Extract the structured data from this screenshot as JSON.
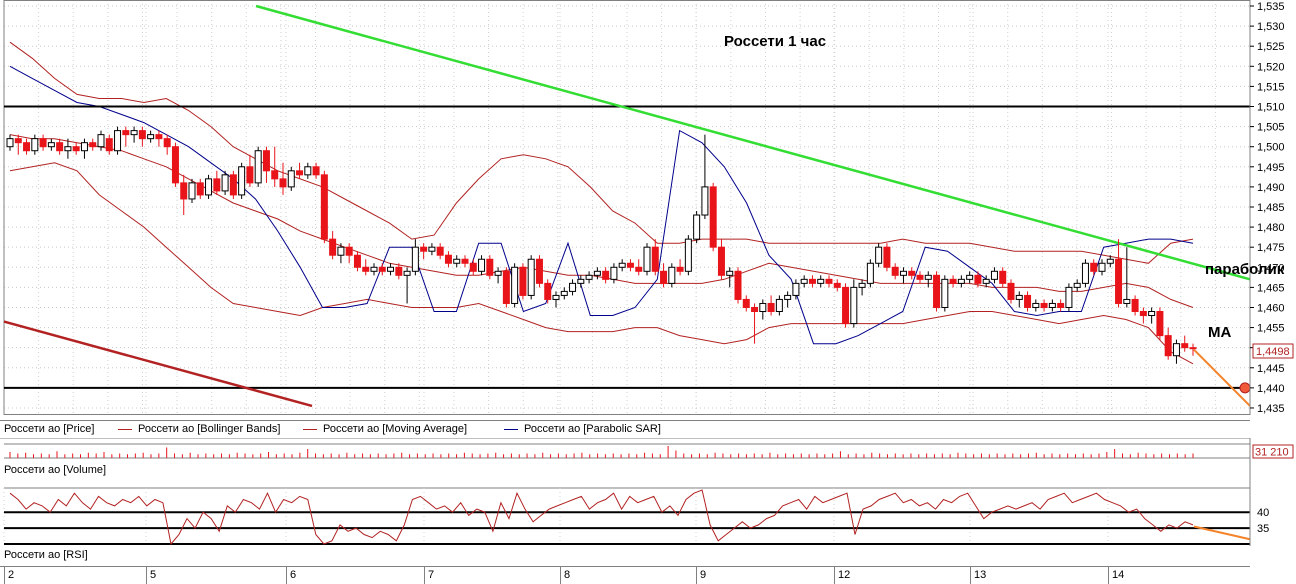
{
  "chart_data": {
    "type": "candlestick",
    "title": "Россети   1 час",
    "annotations": {
      "parabolic": "параболик",
      "ma": "МА"
    },
    "price_axis": {
      "ylim": [
        1.4335,
        1.5355
      ],
      "ticks": [
        "1,535",
        "1,530",
        "1,525",
        "1,520",
        "1,515",
        "1,510",
        "1,505",
        "1,500",
        "1,495",
        "1,490",
        "1,485",
        "1,480",
        "1,475",
        "1,470",
        "1,465",
        "1,460",
        "1,455",
        "1,450",
        "1,445",
        "1,440",
        "1,435"
      ],
      "last_price_label": "1,4498"
    },
    "volume_axis": {
      "last_label": "31 210"
    },
    "rsi_axis": {
      "ticks": [
        "40",
        "35"
      ]
    },
    "dates": [
      "2",
      "5",
      "6",
      "7",
      "8",
      "9",
      "12",
      "13",
      "14"
    ],
    "legend": [
      {
        "label": "Россети ао [Price]",
        "color": "#000000"
      },
      {
        "label": "Россети ао [Bollinger Bands]",
        "color": "#b22222"
      },
      {
        "label": "Россети ао [Moving Average]",
        "color": "#b22222"
      },
      {
        "label": "Россети ао [Parabolic SAR]",
        "color": "#00008b"
      }
    ],
    "pane_labels": {
      "volume": "Россети ао [Volume]",
      "rsi": "Россети ао [RSI]"
    },
    "horizontal_levels": [
      1.51,
      1.44
    ],
    "rsi_levels": [
      40,
      35
    ],
    "trendlines": [
      {
        "name": "resistance",
        "color": "#33dd33",
        "from": [
          36,
          1.535
        ],
        "to": [
          178,
          1.467
        ]
      },
      {
        "name": "lower-channel",
        "color": "#b22222",
        "from": [
          0,
          1.4565
        ],
        "to": [
          44,
          1.4355
        ]
      },
      {
        "name": "forecast-price",
        "color": "#f4832a",
        "from": [
          170,
          1.4495
        ],
        "to": [
          178,
          1.4355
        ]
      },
      {
        "name": "forecast-rsi",
        "color": "#f4832a",
        "from": [
          170,
          35.5
        ],
        "to": [
          178,
          31.5
        ]
      }
    ],
    "colors": {
      "bull": "#ffffff",
      "bear": "#e8141a",
      "bollinger": "#b22222",
      "sar": "#00008b",
      "grid": "#c0c0c0",
      "last_price": "#b22222"
    },
    "candles": [
      [
        1.5,
        1.503,
        1.499,
        1.502
      ],
      [
        1.502,
        1.503,
        1.498,
        1.501
      ],
      [
        1.501,
        1.502,
        1.498,
        1.499
      ],
      [
        1.499,
        1.503,
        1.498,
        1.502
      ],
      [
        1.502,
        1.503,
        1.499,
        1.5
      ],
      [
        1.5,
        1.502,
        1.499,
        1.501
      ],
      [
        1.501,
        1.502,
        1.498,
        1.499
      ],
      [
        1.499,
        1.502,
        1.497,
        1.5
      ],
      [
        1.5,
        1.501,
        1.498,
        1.499
      ],
      [
        1.499,
        1.502,
        1.497,
        1.501
      ],
      [
        1.501,
        1.502,
        1.499,
        1.5
      ],
      [
        1.5,
        1.504,
        1.499,
        1.503
      ],
      [
        1.502,
        1.503,
        1.498,
        1.499
      ],
      [
        1.499,
        1.505,
        1.498,
        1.504
      ],
      [
        1.504,
        1.505,
        1.5,
        1.503
      ],
      [
        1.503,
        1.505,
        1.501,
        1.504
      ],
      [
        1.504,
        1.505,
        1.5,
        1.502
      ],
      [
        1.502,
        1.504,
        1.501,
        1.503
      ],
      [
        1.503,
        1.504,
        1.5,
        1.502
      ],
      [
        1.502,
        1.503,
        1.498,
        1.5
      ],
      [
        1.5,
        1.501,
        1.49,
        1.491
      ],
      [
        1.491,
        1.493,
        1.483,
        1.487
      ],
      [
        1.487,
        1.492,
        1.486,
        1.491
      ],
      [
        1.491,
        1.492,
        1.487,
        1.488
      ],
      [
        1.488,
        1.493,
        1.487,
        1.492
      ],
      [
        1.492,
        1.494,
        1.488,
        1.489
      ],
      [
        1.489,
        1.494,
        1.488,
        1.493
      ],
      [
        1.493,
        1.494,
        1.487,
        1.488
      ],
      [
        1.488,
        1.496,
        1.487,
        1.495
      ],
      [
        1.495,
        1.498,
        1.49,
        1.491
      ],
      [
        1.491,
        1.5,
        1.49,
        1.499
      ],
      [
        1.499,
        1.5,
        1.491,
        1.494
      ],
      [
        1.494,
        1.5,
        1.49,
        1.492
      ],
      [
        1.492,
        1.496,
        1.488,
        1.49
      ],
      [
        1.49,
        1.495,
        1.489,
        1.494
      ],
      [
        1.494,
        1.496,
        1.492,
        1.493
      ],
      [
        1.493,
        1.496,
        1.492,
        1.495
      ],
      [
        1.495,
        1.496,
        1.492,
        1.493
      ],
      [
        1.493,
        1.494,
        1.476,
        1.477
      ],
      [
        1.477,
        1.479,
        1.472,
        1.473
      ],
      [
        1.473,
        1.476,
        1.471,
        1.475
      ],
      [
        1.475,
        1.476,
        1.471,
        1.473
      ],
      [
        1.473,
        1.474,
        1.469,
        1.47
      ],
      [
        1.47,
        1.472,
        1.468,
        1.469
      ],
      [
        1.469,
        1.471,
        1.468,
        1.47
      ],
      [
        1.47,
        1.471,
        1.468,
        1.469
      ],
      [
        1.469,
        1.471,
        1.468,
        1.47
      ],
      [
        1.47,
        1.471,
        1.467,
        1.468
      ],
      [
        1.468,
        1.47,
        1.461,
        1.469
      ],
      [
        1.469,
        1.477,
        1.468,
        1.475
      ],
      [
        1.475,
        1.476,
        1.472,
        1.474
      ],
      [
        1.474,
        1.476,
        1.473,
        1.475
      ],
      [
        1.475,
        1.476,
        1.472,
        1.473
      ],
      [
        1.473,
        1.474,
        1.47,
        1.471
      ],
      [
        1.471,
        1.473,
        1.47,
        1.472
      ],
      [
        1.472,
        1.473,
        1.47,
        1.471
      ],
      [
        1.471,
        1.472,
        1.468,
        1.469
      ],
      [
        1.469,
        1.473,
        1.468,
        1.472
      ],
      [
        1.472,
        1.473,
        1.467,
        1.468
      ],
      [
        1.468,
        1.47,
        1.466,
        1.469
      ],
      [
        1.469,
        1.47,
        1.46,
        1.461
      ],
      [
        1.461,
        1.471,
        1.46,
        1.47
      ],
      [
        1.47,
        1.471,
        1.462,
        1.463
      ],
      [
        1.463,
        1.473,
        1.462,
        1.472
      ],
      [
        1.472,
        1.473,
        1.465,
        1.466
      ],
      [
        1.466,
        1.467,
        1.461,
        1.462
      ],
      [
        1.462,
        1.464,
        1.46,
        1.463
      ],
      [
        1.463,
        1.465,
        1.462,
        1.464
      ],
      [
        1.464,
        1.467,
        1.463,
        1.466
      ],
      [
        1.466,
        1.468,
        1.465,
        1.467
      ],
      [
        1.467,
        1.469,
        1.466,
        1.468
      ],
      [
        1.468,
        1.47,
        1.467,
        1.469
      ],
      [
        1.469,
        1.47,
        1.466,
        1.467
      ],
      [
        1.467,
        1.471,
        1.466,
        1.47
      ],
      [
        1.47,
        1.472,
        1.469,
        1.471
      ],
      [
        1.471,
        1.472,
        1.469,
        1.47
      ],
      [
        1.47,
        1.472,
        1.468,
        1.469
      ],
      [
        1.469,
        1.476,
        1.468,
        1.475
      ],
      [
        1.475,
        1.477,
        1.468,
        1.469
      ],
      [
        1.469,
        1.471,
        1.465,
        1.466
      ],
      [
        1.466,
        1.471,
        1.465,
        1.47
      ],
      [
        1.47,
        1.472,
        1.468,
        1.469
      ],
      [
        1.469,
        1.478,
        1.468,
        1.477
      ],
      [
        1.477,
        1.484,
        1.476,
        1.483
      ],
      [
        1.483,
        1.503,
        1.482,
        1.49
      ],
      [
        1.49,
        1.491,
        1.474,
        1.475
      ],
      [
        1.475,
        1.477,
        1.467,
        1.468
      ],
      [
        1.468,
        1.47,
        1.465,
        1.469
      ],
      [
        1.469,
        1.47,
        1.461,
        1.462
      ],
      [
        1.462,
        1.463,
        1.459,
        1.46
      ],
      [
        1.46,
        1.461,
        1.451,
        1.459
      ],
      [
        1.459,
        1.462,
        1.457,
        1.461
      ],
      [
        1.461,
        1.463,
        1.458,
        1.459
      ],
      [
        1.459,
        1.463,
        1.458,
        1.462
      ],
      [
        1.462,
        1.464,
        1.46,
        1.463
      ],
      [
        1.463,
        1.467,
        1.462,
        1.466
      ],
      [
        1.466,
        1.468,
        1.465,
        1.467
      ],
      [
        1.467,
        1.468,
        1.465,
        1.466
      ],
      [
        1.466,
        1.468,
        1.465,
        1.467
      ],
      [
        1.467,
        1.468,
        1.465,
        1.466
      ],
      [
        1.466,
        1.467,
        1.464,
        1.465
      ],
      [
        1.465,
        1.466,
        1.455,
        1.456
      ],
      [
        1.456,
        1.467,
        1.455,
        1.465
      ],
      [
        1.465,
        1.467,
        1.463,
        1.466
      ],
      [
        1.466,
        1.472,
        1.465,
        1.471
      ],
      [
        1.471,
        1.476,
        1.47,
        1.475
      ],
      [
        1.475,
        1.476,
        1.469,
        1.47
      ],
      [
        1.47,
        1.471,
        1.467,
        1.468
      ],
      [
        1.468,
        1.47,
        1.466,
        1.469
      ],
      [
        1.469,
        1.47,
        1.467,
        1.468
      ],
      [
        1.468,
        1.469,
        1.466,
        1.467
      ],
      [
        1.467,
        1.469,
        1.465,
        1.468
      ],
      [
        1.468,
        1.469,
        1.459,
        1.46
      ],
      [
        1.46,
        1.468,
        1.459,
        1.467
      ],
      [
        1.467,
        1.468,
        1.465,
        1.466
      ],
      [
        1.466,
        1.468,
        1.465,
        1.467
      ],
      [
        1.467,
        1.469,
        1.466,
        1.468
      ],
      [
        1.468,
        1.469,
        1.465,
        1.466
      ],
      [
        1.466,
        1.468,
        1.465,
        1.467
      ],
      [
        1.467,
        1.47,
        1.466,
        1.469
      ],
      [
        1.469,
        1.47,
        1.465,
        1.466
      ],
      [
        1.466,
        1.467,
        1.461,
        1.462
      ],
      [
        1.462,
        1.464,
        1.46,
        1.463
      ],
      [
        1.463,
        1.464,
        1.459,
        1.46
      ],
      [
        1.46,
        1.462,
        1.459,
        1.461
      ],
      [
        1.461,
        1.462,
        1.459,
        1.46
      ],
      [
        1.46,
        1.462,
        1.459,
        1.461
      ],
      [
        1.461,
        1.462,
        1.459,
        1.46
      ],
      [
        1.46,
        1.466,
        1.459,
        1.465
      ],
      [
        1.465,
        1.467,
        1.464,
        1.466
      ],
      [
        1.466,
        1.472,
        1.465,
        1.471
      ],
      [
        1.471,
        1.472,
        1.468,
        1.469
      ],
      [
        1.469,
        1.472,
        1.468,
        1.471
      ],
      [
        1.471,
        1.473,
        1.47,
        1.472
      ],
      [
        1.472,
        1.477,
        1.46,
        1.461
      ],
      [
        1.461,
        1.475,
        1.46,
        1.462
      ],
      [
        1.462,
        1.463,
        1.458,
        1.459
      ],
      [
        1.459,
        1.46,
        1.456,
        1.458
      ],
      [
        1.458,
        1.46,
        1.456,
        1.459
      ],
      [
        1.459,
        1.46,
        1.452,
        1.453
      ],
      [
        1.453,
        1.455,
        1.447,
        1.448
      ],
      [
        1.448,
        1.452,
        1.446,
        1.451
      ],
      [
        1.451,
        1.453,
        1.449,
        1.45
      ],
      [
        1.45,
        1.451,
        1.448,
        1.4498
      ]
    ],
    "bollinger_upper": [
      1.526,
      1.522,
      1.517,
      1.513,
      1.512,
      1.512,
      1.511,
      1.512,
      1.509,
      1.505,
      1.5,
      1.497,
      1.494,
      1.492,
      1.49,
      1.487,
      1.484,
      1.481,
      1.477,
      1.478,
      1.486,
      1.492,
      1.497,
      1.498,
      1.497,
      1.495,
      1.49,
      1.484,
      1.481,
      1.476,
      1.476,
      1.477,
      1.477,
      1.477,
      1.476,
      1.476,
      1.476,
      1.476,
      1.476,
      1.476,
      1.477,
      1.476,
      1.476,
      1.476,
      1.475,
      1.474,
      1.474,
      1.474,
      1.474,
      1.473,
      1.472,
      1.471,
      1.476,
      1.477
    ],
    "bollinger_middle": [
      1.504,
      1.503,
      1.502,
      1.502,
      1.501,
      1.5,
      1.498,
      1.496,
      1.494,
      1.491,
      1.488,
      1.486,
      1.484,
      1.482,
      1.479,
      1.476,
      1.474,
      1.472,
      1.47,
      1.469,
      1.469,
      1.469,
      1.47,
      1.47,
      1.47,
      1.47,
      1.469,
      1.468,
      1.467,
      1.466,
      1.466,
      1.467,
      1.468,
      1.47,
      1.47,
      1.47,
      1.47,
      1.469,
      1.468,
      1.467,
      1.467,
      1.467,
      1.467,
      1.466,
      1.465,
      1.465,
      1.465,
      1.464,
      1.464,
      1.465,
      1.466,
      1.465,
      1.462,
      1.46
    ],
    "bollinger_lower": [
      1.494,
      1.495,
      1.496,
      1.494,
      1.488,
      1.484,
      1.48,
      1.475,
      1.47,
      1.465,
      1.461,
      1.46,
      1.459,
      1.458,
      1.46,
      1.461,
      1.462,
      1.461,
      1.46,
      1.46,
      1.46,
      1.461,
      1.459,
      1.457,
      1.455,
      1.454,
      1.454,
      1.454,
      1.455,
      1.455,
      1.453,
      1.452,
      1.451,
      1.452,
      1.455,
      1.456,
      1.456,
      1.456,
      1.456,
      1.456,
      1.456,
      1.457,
      1.458,
      1.459,
      1.459,
      1.458,
      1.457,
      1.456,
      1.457,
      1.458,
      1.457,
      1.455,
      1.449,
      1.446
    ],
    "moving_average": [
      1.503,
      1.502,
      1.502,
      1.501,
      1.5,
      1.499,
      1.497,
      1.495,
      1.492,
      1.489,
      1.486,
      1.484,
      1.482,
      1.479,
      1.477,
      1.475,
      1.473,
      1.471,
      1.47,
      1.469,
      1.468,
      1.468,
      1.469,
      1.47,
      1.469,
      1.468,
      1.468,
      1.467,
      1.466,
      1.466,
      1.466,
      1.466,
      1.467,
      1.469,
      1.471,
      1.47,
      1.469,
      1.468,
      1.467,
      1.466,
      1.466,
      1.466,
      1.466,
      1.466,
      1.465,
      1.465,
      1.465,
      1.464,
      1.464,
      1.465,
      1.466,
      1.465,
      1.462,
      1.46
    ],
    "parabolic_sar": [
      1.52,
      1.517,
      1.514,
      1.511,
      1.51,
      1.508,
      1.506,
      1.503,
      1.5,
      1.496,
      1.492,
      1.487,
      1.479,
      1.47,
      1.46,
      1.46,
      1.461,
      1.475,
      1.475,
      1.459,
      1.459,
      1.476,
      1.476,
      1.459,
      1.461,
      1.476,
      1.458,
      1.458,
      1.46,
      1.467,
      1.504,
      1.501,
      1.495,
      1.486,
      1.473,
      1.467,
      1.451,
      1.451,
      1.453,
      1.456,
      1.459,
      1.475,
      1.474,
      1.47,
      1.466,
      1.459,
      1.458,
      1.459,
      1.459,
      1.475,
      1.476,
      1.477,
      1.477,
      1.476
    ],
    "volume": [
      8,
      6,
      7,
      5,
      6,
      5,
      9,
      5,
      6,
      5,
      7,
      6,
      8,
      5,
      6,
      5,
      6,
      7,
      5,
      6,
      14,
      6,
      5,
      7,
      5,
      6,
      5,
      6,
      5,
      7,
      6,
      5,
      6,
      8,
      5,
      6,
      5,
      7,
      12,
      6,
      5,
      6,
      5,
      7,
      5,
      6,
      5,
      6,
      5,
      6,
      7,
      5,
      6,
      5,
      6,
      5,
      6,
      5,
      7,
      6,
      5,
      6,
      7,
      5,
      6,
      5,
      6,
      5,
      7,
      5,
      6,
      5,
      6,
      7,
      5,
      6,
      5,
      6,
      5,
      6,
      5,
      7,
      6,
      5,
      16,
      10,
      6,
      5,
      6,
      5,
      7,
      6,
      5,
      6,
      5,
      6,
      5,
      7,
      5,
      6,
      5,
      6,
      5,
      6,
      5,
      6,
      9,
      5,
      6,
      5,
      7,
      6,
      5,
      6,
      5,
      6,
      5,
      6,
      5,
      6,
      5,
      7,
      6,
      5,
      6,
      5,
      6,
      5,
      6,
      5,
      6,
      7,
      5,
      6,
      5,
      6,
      5,
      6,
      5,
      6,
      8,
      12,
      6,
      5,
      7,
      6,
      5,
      6,
      5,
      6,
      5,
      6
    ],
    "rsi": [
      46,
      44,
      41,
      43,
      42,
      40,
      44,
      42,
      46,
      43,
      41,
      45,
      43,
      42,
      44,
      43,
      45,
      42,
      44,
      43,
      30,
      33,
      38,
      35,
      40,
      38,
      34,
      42,
      40,
      44,
      43,
      41,
      46,
      40,
      44,
      43,
      45,
      44,
      33,
      30,
      31,
      36,
      34,
      35,
      33,
      32,
      34,
      33,
      31,
      36,
      44,
      45,
      43,
      41,
      42,
      40,
      43,
      39,
      41,
      40,
      34,
      43,
      38,
      46,
      41,
      37,
      39,
      41,
      42,
      43,
      44,
      45,
      41,
      43,
      44,
      46,
      41,
      45,
      43,
      44,
      45,
      40,
      42,
      39,
      44,
      46,
      47,
      36,
      31,
      33,
      35,
      37,
      35,
      36,
      38,
      39,
      42,
      43,
      44,
      41,
      45,
      43,
      44,
      45,
      46,
      33,
      41,
      42,
      44,
      45,
      46,
      43,
      44,
      42,
      43,
      41,
      44,
      43,
      45,
      46,
      42,
      38,
      40,
      41,
      42,
      41,
      42,
      43,
      41,
      44,
      45,
      46,
      43,
      44,
      45,
      46,
      44,
      43,
      42,
      40,
      41,
      38,
      36,
      34,
      36,
      35,
      37,
      36
    ]
  }
}
